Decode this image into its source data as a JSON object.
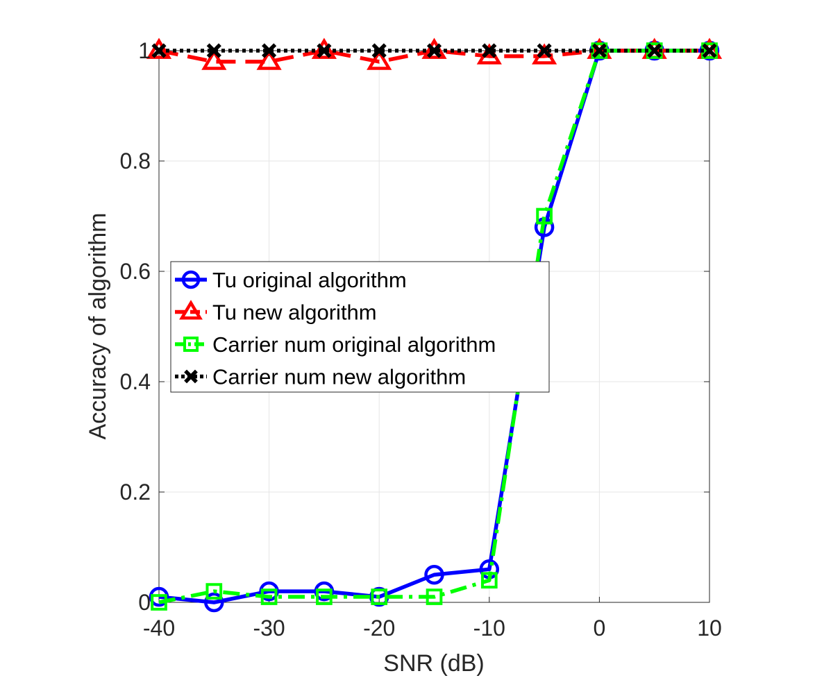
{
  "chart_data": {
    "type": "line",
    "title": "",
    "xlabel": "SNR (dB)",
    "ylabel": "Accuracy of algorithm",
    "x": [
      -40,
      -35,
      -30,
      -25,
      -20,
      -15,
      -10,
      -5,
      0,
      5,
      10
    ],
    "xlim": [
      -40,
      10
    ],
    "ylim": [
      0,
      1
    ],
    "xticks": [
      -40,
      -30,
      -20,
      -10,
      0,
      10
    ],
    "yticks": [
      0,
      0.2,
      0.4,
      0.6,
      0.8,
      1
    ],
    "xtick_labels": [
      "-40",
      "-30",
      "-20",
      "-10",
      "0",
      "10"
    ],
    "ytick_labels": [
      "0",
      "0.2",
      "0.4",
      "0.6",
      "0.8",
      "1"
    ],
    "grid": true,
    "legend_position": "center-left",
    "series": [
      {
        "name": "Tu original algorithm",
        "values": [
          0.01,
          0.0,
          0.02,
          0.02,
          0.01,
          0.05,
          0.06,
          0.68,
          1.0,
          1.0,
          1.0
        ],
        "color": "#0000ff",
        "line_style": "solid",
        "marker": "circle"
      },
      {
        "name": "Tu new algorithm",
        "values": [
          1.0,
          0.98,
          0.98,
          1.0,
          0.98,
          1.0,
          0.99,
          0.99,
          1.0,
          1.0,
          1.0
        ],
        "color": "#ff0000",
        "line_style": "dashed",
        "marker": "triangle"
      },
      {
        "name": "Carrier num original algorithm",
        "values": [
          0.0,
          0.02,
          0.01,
          0.01,
          0.01,
          0.01,
          0.04,
          0.7,
          1.0,
          1.0,
          1.0
        ],
        "color": "#00ff00",
        "line_style": "dashdot",
        "marker": "square"
      },
      {
        "name": "Carrier num new algorithm",
        "values": [
          1.0,
          1.0,
          1.0,
          1.0,
          1.0,
          1.0,
          1.0,
          1.0,
          1.0,
          1.0,
          1.0
        ],
        "color": "#000000",
        "line_style": "dotted",
        "marker": "x"
      }
    ]
  }
}
